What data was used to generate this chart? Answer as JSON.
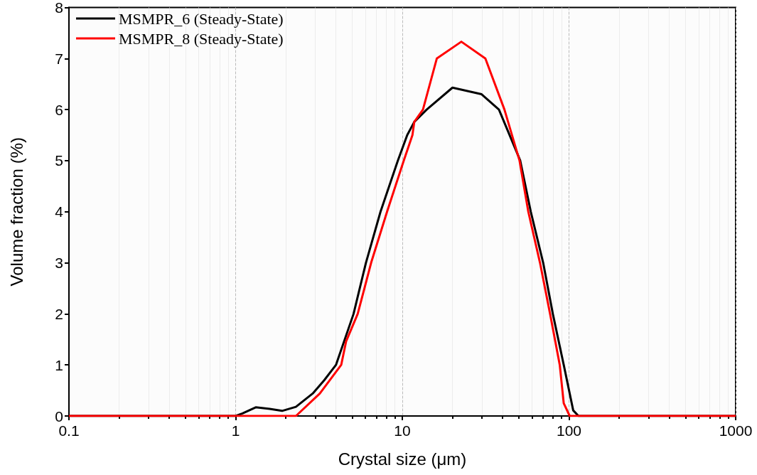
{
  "chart_data": {
    "type": "line",
    "xlabel": "Crystal size (μm)",
    "ylabel": "Volume fraction (%)",
    "log": "x",
    "xlim": [
      0.1,
      1000
    ],
    "xticks": [
      0.1,
      1,
      10,
      100,
      1000
    ],
    "ylim": [
      0,
      8
    ],
    "yticks": [
      0,
      1,
      2,
      3,
      4,
      5,
      6,
      7,
      8
    ],
    "grid": "x",
    "legend": "top left",
    "marker": "none",
    "line_style": "solid",
    "series": [
      {
        "name": "MSMPR_6 (Steady-State)",
        "color": "#000000",
        "x": [
          0.1,
          0.5,
          1.0,
          1.1,
          1.32,
          1.6,
          1.9,
          2.3,
          2.9,
          3.4,
          4.0,
          5.1,
          6.05,
          7.4,
          9.4,
          10.7,
          11.8,
          14,
          20,
          29.9,
          38,
          51,
          59,
          70,
          80,
          93,
          106,
          114,
          300,
          1000
        ],
        "values": [
          0,
          0,
          0,
          0.05,
          0.17,
          0.14,
          0.1,
          0.18,
          0.44,
          0.7,
          1,
          2,
          3,
          4,
          5,
          5.5,
          5.76,
          6,
          6.43,
          6.3,
          6,
          5,
          4,
          3,
          2,
          1,
          0.11,
          0,
          0,
          0
        ]
      },
      {
        "name": "MSMPR_8 (Steady-State)",
        "color": "#ff0000",
        "x": [
          0.1,
          1.0,
          2.3,
          3.2,
          4.3,
          4.6,
          5.4,
          6.5,
          8.1,
          10.2,
          11.5,
          11.8,
          13.3,
          16.1,
          22.6,
          31.5,
          41,
          50.5,
          57,
          67,
          77,
          88,
          93,
          101,
          300,
          1000
        ],
        "values": [
          0,
          0,
          0,
          0.44,
          1,
          1.46,
          2,
          3,
          4,
          5,
          5.5,
          5.76,
          6,
          7,
          7.33,
          7,
          6,
          5,
          4,
          3,
          2,
          1,
          0.25,
          0,
          0,
          0
        ]
      }
    ]
  }
}
